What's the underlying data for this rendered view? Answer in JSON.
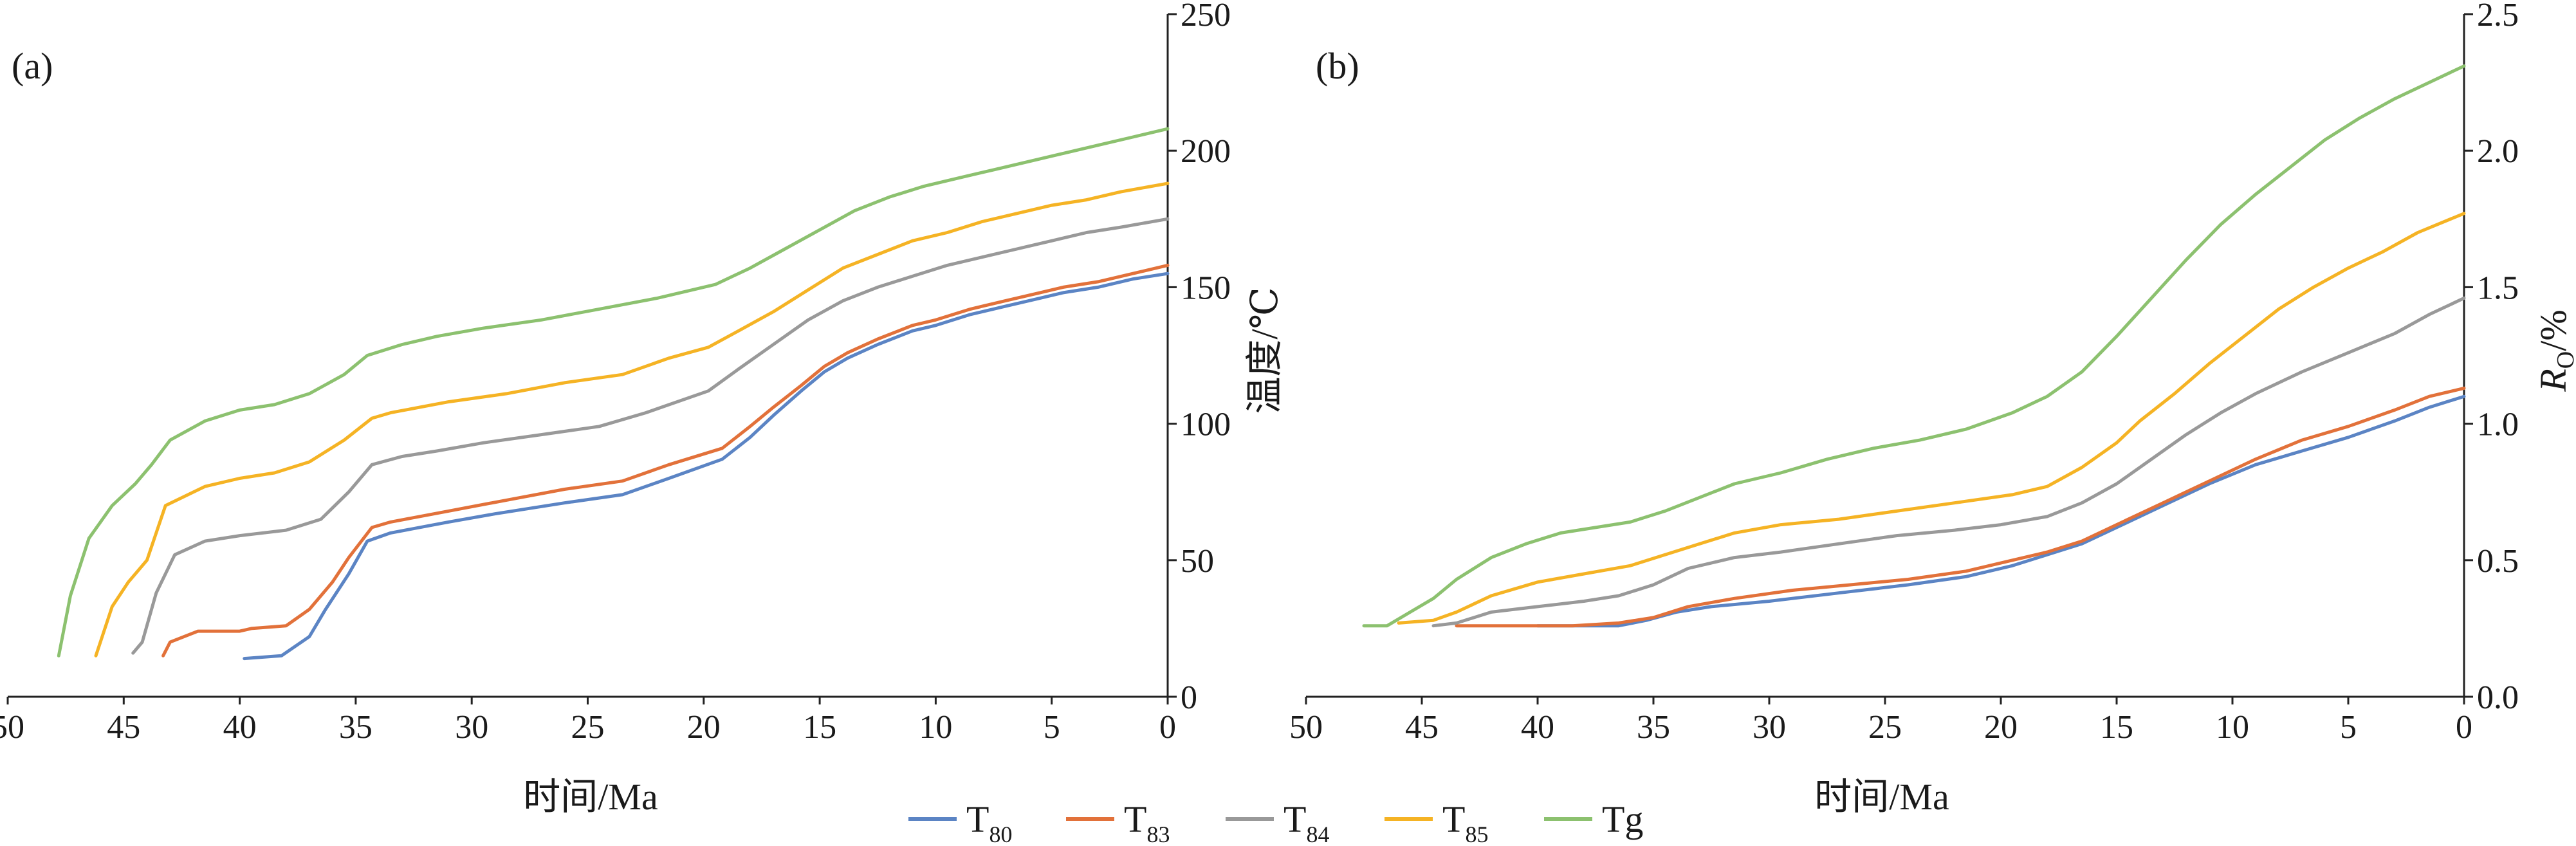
{
  "panels": [
    {
      "label": "(a)"
    },
    {
      "label": "(b)"
    }
  ],
  "legend": [
    {
      "base": "T",
      "sub": "80",
      "color": "#5b84c4"
    },
    {
      "base": "T",
      "sub": "83",
      "color": "#e2713a"
    },
    {
      "base": "T",
      "sub": "84",
      "color": "#999999"
    },
    {
      "base": "T",
      "sub": "85",
      "color": "#f5b324"
    },
    {
      "base": "Tg",
      "sub": "",
      "color": "#8cc16f"
    }
  ],
  "chart_data": [
    {
      "type": "line",
      "panel": "(a)",
      "xlabel": "时间/Ma",
      "ylabel": "温度/℃",
      "xlim": [
        50,
        0
      ],
      "ylim": [
        0,
        250
      ],
      "xticks": [
        "50",
        "45",
        "40",
        "35",
        "30",
        "25",
        "20",
        "15",
        "10",
        "5",
        "0"
      ],
      "yticks": [
        "0",
        "50",
        "100",
        "150",
        "200",
        "250"
      ],
      "y_axis_position": "right",
      "legend_position": "bottom",
      "series": [
        {
          "name": "T80",
          "color": "#5b84c4",
          "x": [
            39.8,
            38.2,
            37.0,
            36.3,
            35.3,
            34.5,
            33.5,
            31.0,
            29.0,
            26.0,
            23.5,
            21.5,
            19.2,
            18.0,
            17.0,
            15.8,
            14.8,
            13.8,
            12.5,
            11.0,
            10.0,
            8.5,
            7.0,
            5.5,
            4.5,
            3.0,
            1.5,
            0.0
          ],
          "y": [
            14,
            15,
            22,
            32,
            45,
            57,
            60,
            64,
            67,
            71,
            74,
            80,
            87,
            95,
            103,
            112,
            119,
            124,
            129,
            134,
            136,
            140,
            143,
            146,
            148,
            150,
            153,
            155
          ]
        },
        {
          "name": "T83",
          "color": "#e2713a",
          "x": [
            43.3,
            43.0,
            41.8,
            40.0,
            39.5,
            38.0,
            37.0,
            36.0,
            35.3,
            34.3,
            33.5,
            31.0,
            28.5,
            26.0,
            23.5,
            21.5,
            19.2,
            18.0,
            17.0,
            15.8,
            14.8,
            13.8,
            12.5,
            11.0,
            10.0,
            8.5,
            7.0,
            5.5,
            4.5,
            3.0,
            1.5,
            0.0
          ],
          "y": [
            15,
            20,
            24,
            24,
            25,
            26,
            32,
            42,
            51,
            62,
            64,
            68,
            72,
            76,
            79,
            85,
            91,
            99,
            106,
            114,
            121,
            126,
            131,
            136,
            138,
            142,
            145,
            148,
            150,
            152,
            155,
            158
          ]
        },
        {
          "name": "T84",
          "color": "#999999",
          "x": [
            44.6,
            44.2,
            43.6,
            42.8,
            41.5,
            40.0,
            38.0,
            36.5,
            35.3,
            34.3,
            33.0,
            31.5,
            29.5,
            27.0,
            24.5,
            22.5,
            19.8,
            18.5,
            17.0,
            15.5,
            14.0,
            12.5,
            11.0,
            9.5,
            8.0,
            6.5,
            5.0,
            3.5,
            2.0,
            0.0
          ],
          "y": [
            16,
            20,
            38,
            52,
            57,
            59,
            61,
            65,
            75,
            85,
            88,
            90,
            93,
            96,
            99,
            104,
            112,
            120,
            129,
            138,
            145,
            150,
            154,
            158,
            161,
            164,
            167,
            170,
            172,
            175
          ]
        },
        {
          "name": "T85",
          "color": "#f5b324",
          "x": [
            46.2,
            45.5,
            44.8,
            44.0,
            43.2,
            41.5,
            40.0,
            38.5,
            37.0,
            35.5,
            34.3,
            33.5,
            31.0,
            28.5,
            26.0,
            23.5,
            21.5,
            19.8,
            18.5,
            17.0,
            15.5,
            14.0,
            12.5,
            11.0,
            9.5,
            8.0,
            6.5,
            5.0,
            3.5,
            2.0,
            0.0
          ],
          "y": [
            15,
            33,
            42,
            50,
            70,
            77,
            80,
            82,
            86,
            94,
            102,
            104,
            108,
            111,
            115,
            118,
            124,
            128,
            134,
            141,
            149,
            157,
            162,
            167,
            170,
            174,
            177,
            180,
            182,
            185,
            188
          ]
        },
        {
          "name": "Tg",
          "color": "#8cc16f",
          "x": [
            47.8,
            47.3,
            46.5,
            45.5,
            44.5,
            43.8,
            43.0,
            41.5,
            40.0,
            38.5,
            37.0,
            35.5,
            34.5,
            33.0,
            31.5,
            29.5,
            27.0,
            24.5,
            22.0,
            19.5,
            18.0,
            16.5,
            15.0,
            13.5,
            12.0,
            10.5,
            9.0,
            7.5,
            6.0,
            4.5,
            3.0,
            1.5,
            0.0
          ],
          "y": [
            15,
            37,
            58,
            70,
            78,
            85,
            94,
            101,
            105,
            107,
            111,
            118,
            125,
            129,
            132,
            135,
            138,
            142,
            146,
            151,
            157,
            164,
            171,
            178,
            183,
            187,
            190,
            193,
            196,
            199,
            202,
            205,
            208
          ]
        }
      ]
    },
    {
      "type": "line",
      "panel": "(b)",
      "xlabel": "时间/Ma",
      "ylabel": "Ro/%",
      "ylabel_italic": "R",
      "ylabel_sub": "O",
      "ylabel_rest": "/%",
      "xlim": [
        50,
        0
      ],
      "ylim": [
        0,
        2.5
      ],
      "xticks": [
        "50",
        "45",
        "40",
        "35",
        "30",
        "25",
        "20",
        "15",
        "10",
        "5",
        "0"
      ],
      "yticks": [
        "0.0",
        "0.5",
        "1.0",
        "1.5",
        "2.0",
        "2.5"
      ],
      "y_axis_position": "right",
      "legend_position": "bottom",
      "series": [
        {
          "name": "T80",
          "color": "#5b84c4",
          "x": [
            40.0,
            38.0,
            36.5,
            35.3,
            34.0,
            32.5,
            30.0,
            27.0,
            24.0,
            21.5,
            19.5,
            18.0,
            16.5,
            15.0,
            13.0,
            11.0,
            9.0,
            7.0,
            5.0,
            3.0,
            1.5,
            0.0
          ],
          "y": [
            0.26,
            0.26,
            0.26,
            0.28,
            0.31,
            0.33,
            0.35,
            0.38,
            0.41,
            0.44,
            0.48,
            0.52,
            0.56,
            0.62,
            0.7,
            0.78,
            0.85,
            0.9,
            0.95,
            1.01,
            1.06,
            1.1
          ]
        },
        {
          "name": "T83",
          "color": "#e2713a",
          "x": [
            43.5,
            41.0,
            38.5,
            36.5,
            35.0,
            33.5,
            31.5,
            29.0,
            26.5,
            24.0,
            21.5,
            19.5,
            18.0,
            16.5,
            15.0,
            13.0,
            11.0,
            9.0,
            7.0,
            5.0,
            3.0,
            1.5,
            0.0
          ],
          "y": [
            0.26,
            0.26,
            0.26,
            0.27,
            0.29,
            0.33,
            0.36,
            0.39,
            0.41,
            0.43,
            0.46,
            0.5,
            0.53,
            0.57,
            0.63,
            0.71,
            0.79,
            0.87,
            0.94,
            0.99,
            1.05,
            1.1,
            1.13
          ]
        },
        {
          "name": "T84",
          "color": "#999999",
          "x": [
            44.5,
            43.5,
            42.0,
            40.0,
            38.0,
            36.5,
            35.0,
            33.5,
            31.5,
            29.5,
            27.0,
            24.5,
            22.0,
            20.0,
            18.0,
            16.5,
            15.0,
            13.5,
            12.0,
            10.5,
            9.0,
            7.0,
            5.0,
            3.0,
            1.5,
            0.0
          ],
          "y": [
            0.26,
            0.27,
            0.31,
            0.33,
            0.35,
            0.37,
            0.41,
            0.47,
            0.51,
            0.53,
            0.56,
            0.59,
            0.61,
            0.63,
            0.66,
            0.71,
            0.78,
            0.87,
            0.96,
            1.04,
            1.11,
            1.19,
            1.26,
            1.33,
            1.4,
            1.46
          ]
        },
        {
          "name": "T85",
          "color": "#f5b324",
          "x": [
            46.0,
            44.5,
            43.5,
            42.0,
            40.0,
            38.0,
            36.0,
            34.5,
            33.0,
            31.5,
            29.5,
            27.0,
            24.5,
            22.0,
            19.5,
            18.0,
            16.5,
            15.0,
            14.0,
            12.5,
            11.0,
            9.5,
            8.0,
            6.5,
            5.0,
            3.5,
            2.0,
            0.0
          ],
          "y": [
            0.27,
            0.28,
            0.31,
            0.37,
            0.42,
            0.45,
            0.48,
            0.52,
            0.56,
            0.6,
            0.63,
            0.65,
            0.68,
            0.71,
            0.74,
            0.77,
            0.84,
            0.93,
            1.01,
            1.11,
            1.22,
            1.32,
            1.42,
            1.5,
            1.57,
            1.63,
            1.7,
            1.77
          ]
        },
        {
          "name": "Tg",
          "color": "#8cc16f",
          "x": [
            47.5,
            46.5,
            45.5,
            44.5,
            43.5,
            42.0,
            40.5,
            39.0,
            37.5,
            36.0,
            34.5,
            33.0,
            31.5,
            29.5,
            27.5,
            25.5,
            23.5,
            21.5,
            19.5,
            18.0,
            16.5,
            15.0,
            13.5,
            12.0,
            10.5,
            9.0,
            7.5,
            6.0,
            4.5,
            3.0,
            1.5,
            0.0
          ],
          "y": [
            0.26,
            0.26,
            0.31,
            0.36,
            0.43,
            0.51,
            0.56,
            0.6,
            0.62,
            0.64,
            0.68,
            0.73,
            0.78,
            0.82,
            0.87,
            0.91,
            0.94,
            0.98,
            1.04,
            1.1,
            1.19,
            1.32,
            1.46,
            1.6,
            1.73,
            1.84,
            1.94,
            2.04,
            2.12,
            2.19,
            2.25,
            2.31
          ]
        }
      ]
    }
  ]
}
